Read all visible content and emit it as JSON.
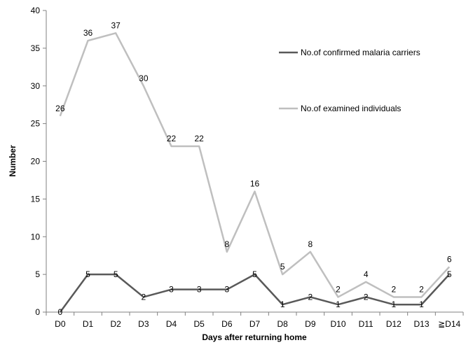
{
  "chart_data": {
    "type": "line",
    "xlabel": "Days after returning home",
    "ylabel": "Number",
    "ylim": [
      0,
      40
    ],
    "yticks": [
      0,
      5,
      10,
      15,
      20,
      25,
      30,
      35,
      40
    ],
    "categories": [
      "D0",
      "D1",
      "D2",
      "D3",
      "D4",
      "D5",
      "D6",
      "D7",
      "D8",
      "D9",
      "D10",
      "D11",
      "D12",
      "D13",
      "≧D14"
    ],
    "series": [
      {
        "name": "No.of confirmed malaria carriers",
        "color": "#595959",
        "values": [
          0,
          5,
          5,
          2,
          3,
          3,
          3,
          5,
          1,
          2,
          1,
          2,
          1,
          1,
          5
        ]
      },
      {
        "name": "No.of examined individuals",
        "color": "#bfbfbf",
        "values": [
          26,
          36,
          37,
          30,
          22,
          22,
          8,
          16,
          5,
          8,
          2,
          4,
          2,
          2,
          6
        ]
      }
    ],
    "grid": false,
    "legend_position": "top-right"
  }
}
